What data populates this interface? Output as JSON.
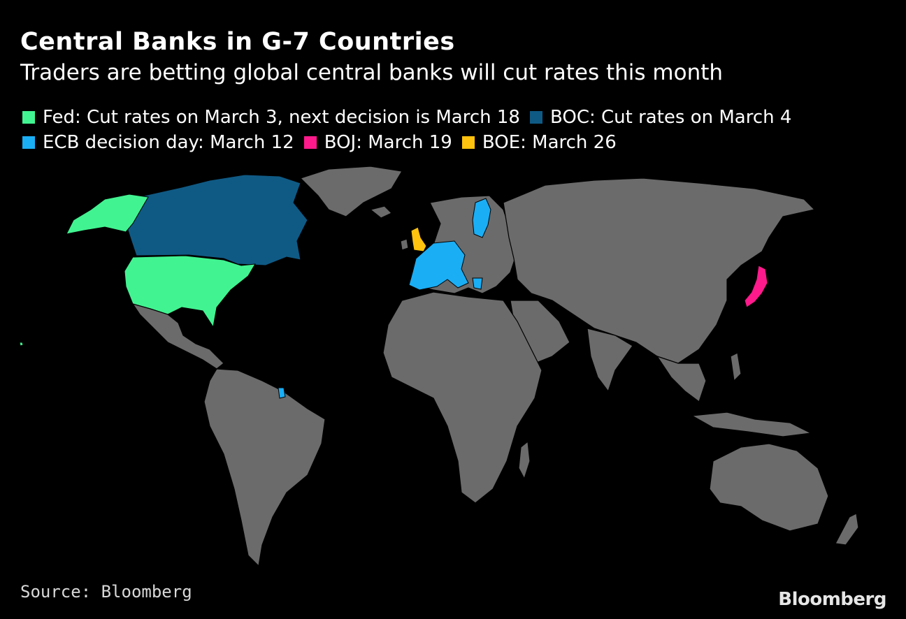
{
  "header": {
    "title": "Central Banks in G-7 Countries",
    "subtitle": "Traders are betting global central banks will cut rates this month"
  },
  "legend": {
    "items": [
      {
        "label": "Fed: Cut rates on March 3, next decision is March 18",
        "color": "#41f491"
      },
      {
        "label": "BOC: Cut rates on March 4",
        "color": "#0f5a85"
      },
      {
        "label": "ECB decision day: March 12",
        "color": "#1aaef5"
      },
      {
        "label": "BOJ: March 19",
        "color": "#ff1a8c"
      },
      {
        "label": "BOE: March 26",
        "color": "#ffc20e"
      }
    ]
  },
  "map": {
    "base_land_color": "#6b6b6b",
    "background_color": "#000000"
  },
  "footer": {
    "source": "Source: Bloomberg",
    "logo": "Bloomberg"
  }
}
